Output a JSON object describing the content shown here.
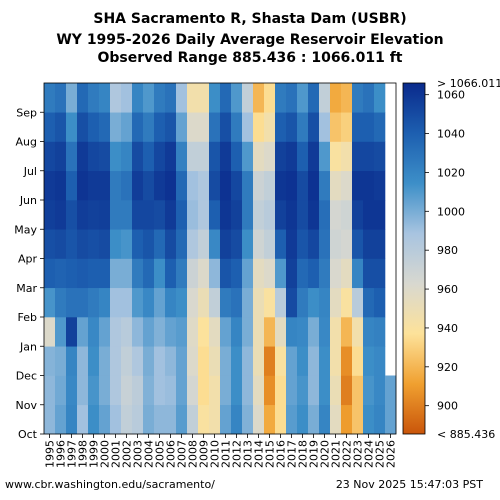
{
  "title_lines": [
    "SHA Sacramento R, Shasta Dam (USBR)",
    "WY 1995-2026 Daily Average Reservoir Elevation",
    "Observed Range 885.436 : 1066.011 ft"
  ],
  "footer": {
    "source": "www.cbr.washington.edu/sacramento/",
    "timestamp": "23 Nov 2025 15:47:03 PST"
  },
  "chart_data": {
    "type": "heatmap",
    "x_categories": [
      "1995",
      "1996",
      "1997",
      "1998",
      "1999",
      "2000",
      "2001",
      "2002",
      "2003",
      "2004",
      "2005",
      "2006",
      "2007",
      "2008",
      "2009",
      "2010",
      "2011",
      "2012",
      "2013",
      "2014",
      "2015",
      "2016",
      "2017",
      "2018",
      "2019",
      "2020",
      "2021",
      "2022",
      "2023",
      "2024",
      "2025",
      "2026"
    ],
    "y_tick_labels": [
      "Oct",
      "Nov",
      "Dec",
      "Jan",
      "Feb",
      "Mar",
      "Apr",
      "May",
      "Jun",
      "Jul",
      "Aug",
      "Sep"
    ],
    "months_order": [
      "Oct",
      "Nov",
      "Dec",
      "Jan",
      "Feb",
      "Mar",
      "Apr",
      "May",
      "Jun",
      "Jul",
      "Aug",
      "Sep"
    ],
    "values_monthly_ft": [
      [
        995,
        995,
        997,
        960,
        1012,
        1040,
        1048,
        1056,
        1058,
        1052,
        1040,
        1025
      ],
      [
        1005,
        1002,
        1000,
        1010,
        1025,
        1038,
        1050,
        1058,
        1060,
        1055,
        1045,
        1030
      ],
      [
        1020,
        1018,
        1020,
        1055,
        1030,
        1040,
        1045,
        1048,
        1040,
        1030,
        1015,
        1000
      ],
      [
        990,
        995,
        995,
        1005,
        1030,
        1042,
        1050,
        1057,
        1061,
        1058,
        1048,
        1035
      ],
      [
        1015,
        1012,
        1015,
        1018,
        1025,
        1040,
        1048,
        1055,
        1058,
        1052,
        1040,
        1025
      ],
      [
        1005,
        1000,
        1000,
        1005,
        1020,
        1040,
        1050,
        1056,
        1058,
        1050,
        1035,
        1020
      ],
      [
        990,
        985,
        985,
        985,
        990,
        1000,
        1015,
        1025,
        1025,
        1015,
        1000,
        985
      ],
      [
        975,
        972,
        975,
        980,
        990,
        1000,
        1012,
        1025,
        1030,
        1020,
        1005,
        990
      ],
      [
        980,
        978,
        985,
        995,
        1010,
        1025,
        1040,
        1052,
        1057,
        1050,
        1035,
        1020
      ],
      [
        1000,
        998,
        1000,
        1005,
        1018,
        1035,
        1045,
        1052,
        1050,
        1040,
        1025,
        1010
      ],
      [
        995,
        990,
        990,
        998,
        1005,
        1015,
        1035,
        1050,
        1058,
        1052,
        1040,
        1025
      ],
      [
        995,
        992,
        995,
        1005,
        1020,
        1040,
        1050,
        1058,
        1062,
        1058,
        1045,
        1030
      ],
      [
        1008,
        1005,
        1005,
        1008,
        1015,
        1025,
        1035,
        1040,
        1035,
        1022,
        1005,
        990
      ],
      [
        975,
        965,
        960,
        958,
        962,
        970,
        985,
        992,
        990,
        975,
        960,
        945
      ],
      [
        940,
        935,
        935,
        938,
        950,
        960,
        975,
        985,
        985,
        975,
        960,
        945
      ],
      [
        945,
        945,
        950,
        955,
        975,
        995,
        1018,
        1040,
        1050,
        1045,
        1030,
        1015
      ],
      [
        1005,
        1000,
        1000,
        1005,
        1025,
        1045,
        1055,
        1060,
        1062,
        1058,
        1048,
        1035
      ],
      [
        1020,
        1015,
        1015,
        1020,
        1030,
        1040,
        1050,
        1055,
        1052,
        1040,
        1025,
        1010
      ],
      [
        998,
        995,
        995,
        1000,
        1000,
        1005,
        1015,
        1025,
        1025,
        1010,
        990,
        975
      ],
      [
        960,
        955,
        950,
        950,
        950,
        955,
        968,
        975,
        970,
        955,
        935,
        920
      ],
      [
        915,
        905,
        900,
        920,
        940,
        960,
        975,
        980,
        975,
        960,
        945,
        935
      ],
      [
        935,
        935,
        940,
        955,
        980,
        1010,
        1040,
        1055,
        1060,
        1055,
        1040,
        1025
      ],
      [
        1008,
        1005,
        1005,
        1020,
        1050,
        1055,
        1058,
        1060,
        1062,
        1058,
        1045,
        1030
      ],
      [
        1015,
        1012,
        1015,
        1018,
        1025,
        1035,
        1045,
        1050,
        1050,
        1040,
        1025,
        1010
      ],
      [
        1000,
        995,
        995,
        1000,
        1015,
        1040,
        1052,
        1060,
        1062,
        1058,
        1048,
        1035
      ],
      [
        1020,
        1015,
        1015,
        1018,
        1020,
        1025,
        1030,
        1032,
        1025,
        1010,
        990,
        975
      ],
      [
        955,
        950,
        945,
        945,
        955,
        962,
        968,
        965,
        955,
        940,
        925,
        915
      ],
      [
        910,
        900,
        905,
        920,
        940,
        955,
        965,
        968,
        960,
        945,
        930,
        920
      ],
      [
        925,
        925,
        935,
        945,
        980,
        1020,
        1045,
        1055,
        1060,
        1052,
        1040,
        1025
      ],
      [
        1015,
        1012,
        1015,
        1020,
        1035,
        1048,
        1055,
        1060,
        1060,
        1052,
        1040,
        1030
      ],
      [
        1020,
        1018,
        1018,
        1022,
        1040,
        1048,
        1055,
        1060,
        1058,
        1050,
        1035,
        1015
      ],
      [
        1005,
        1005,
        null,
        null,
        null,
        null,
        null,
        null,
        null,
        null,
        null,
        null
      ]
    ],
    "colorbar": {
      "ticks": [
        900,
        920,
        940,
        960,
        980,
        1000,
        1020,
        1040,
        1060
      ],
      "top_label": "> 1066.011",
      "bottom_label": "< 885.436",
      "range": [
        885.436,
        1066.011
      ],
      "colors": [
        "#c9550a",
        "#f0a030",
        "#fde29a",
        "#d8d8d0",
        "#a8c4e0",
        "#3d8fc8",
        "#1d5fb0",
        "#0a2a8c"
      ]
    }
  }
}
